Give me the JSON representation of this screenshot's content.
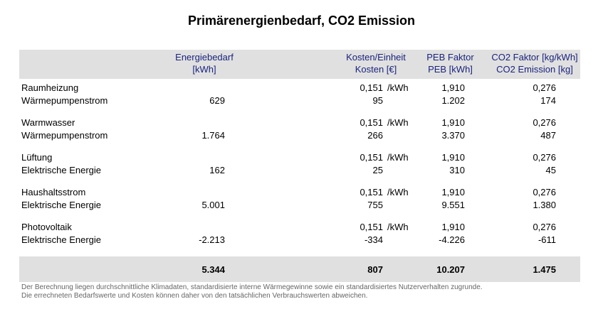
{
  "title": "Primärenergienbedarf, CO2 Emission",
  "header": {
    "energy_line1": "Energiebedarf",
    "energy_line2": "[kWh]",
    "cost_line1": "Kosten/Einheit",
    "cost_line2": "Kosten [€]",
    "peb_line1": "PEB Faktor",
    "peb_line2": "PEB [kWh]",
    "co2_line1": "CO2 Faktor [kg/kWh]",
    "co2_line2": "CO2 Emission [kg]"
  },
  "rows": [
    {
      "category": "Raumheizung",
      "source": "Wärmepumpenstrom",
      "energy": "629",
      "unit_price": "0,151",
      "unit": "/kWh",
      "cost": "95",
      "peb_factor": "1,910",
      "peb": "1.202",
      "co2_factor": "0,276",
      "co2": "174"
    },
    {
      "category": "Warmwasser",
      "source": "Wärmepumpenstrom",
      "energy": "1.764",
      "unit_price": "0,151",
      "unit": "/kWh",
      "cost": "266",
      "peb_factor": "1,910",
      "peb": "3.370",
      "co2_factor": "0,276",
      "co2": "487"
    },
    {
      "category": "Lüftung",
      "source": "Elektrische Energie",
      "energy": "162",
      "unit_price": "0,151",
      "unit": "/kWh",
      "cost": "25",
      "peb_factor": "1,910",
      "peb": "310",
      "co2_factor": "0,276",
      "co2": "45"
    },
    {
      "category": "Haushaltsstrom",
      "source": "Elektrische Energie",
      "energy": "5.001",
      "unit_price": "0,151",
      "unit": "/kWh",
      "cost": "755",
      "peb_factor": "1,910",
      "peb": "9.551",
      "co2_factor": "0,276",
      "co2": "1.380"
    },
    {
      "category": "Photovoltaik",
      "source": "Elektrische Energie",
      "energy": "-2.213",
      "unit_price": "0,151",
      "unit": "/kWh",
      "cost": "-334",
      "peb_factor": "1,910",
      "peb": "-4.226",
      "co2_factor": "0,276",
      "co2": "-611"
    }
  ],
  "totals": {
    "energy": "5.344",
    "cost": "807",
    "peb": "10.207",
    "co2": "1.475"
  },
  "footer": {
    "line1": "Der Berechnung liegen durchschnittliche Klimadaten, standardisierte interne Wärmegewinne sowie ein standardisiertes Nutzerverhalten zugrunde.",
    "line2": "Die errechneten Bedarfswerte und Kosten können daher von den tatsächlichen Verbrauchswerten abweichen."
  }
}
